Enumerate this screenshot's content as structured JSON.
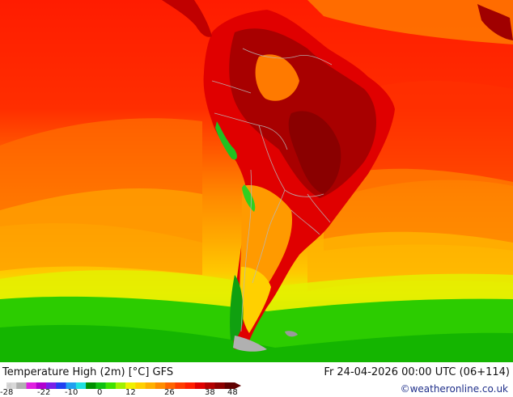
{
  "map": {
    "title": "Temperature High (2m) [°C] GFS",
    "valid_time": "Fr 24-04-2026 00:00 UTC (06+114)",
    "credit": "©weatheronline.co.uk",
    "region": "South America",
    "colorbar": {
      "ticks": [
        "-28",
        "-22",
        "-10",
        "0",
        "12",
        "26",
        "38",
        "48"
      ],
      "colors": [
        "#d8d8d8",
        "#b0b0b0",
        "#e020e0",
        "#b000d0",
        "#7820e8",
        "#2040f0",
        "#20a0f0",
        "#20e0e0",
        "#009000",
        "#10c010",
        "#40e000",
        "#a0f000",
        "#f0f000",
        "#ffd000",
        "#ffb000",
        "#ff8c00",
        "#ff6400",
        "#ff3c00",
        "#ff1e00",
        "#e00000",
        "#b40000",
        "#8c0000",
        "#600000"
      ]
    }
  }
}
